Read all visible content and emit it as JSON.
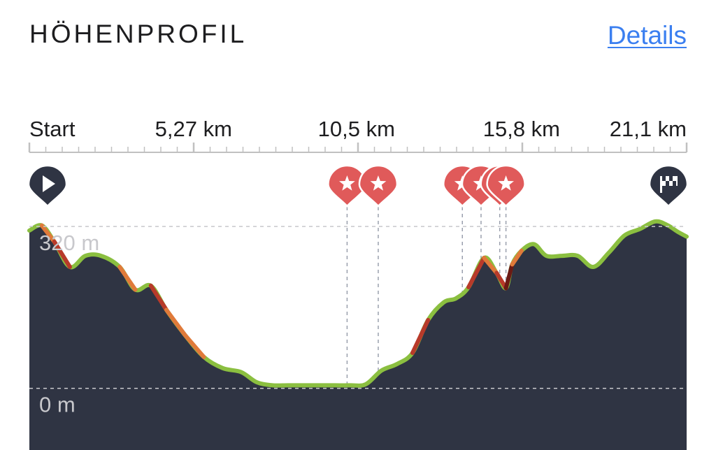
{
  "header": {
    "title": "HÖHENPROFIL",
    "details_link": "Details"
  },
  "colors": {
    "fill": "#2f3443",
    "line": "#8bbf40",
    "steep_orange": "#e07a3a",
    "steep_red": "#b83a2a",
    "steep_darkred": "#6b1a14",
    "marker": "#e05a5a",
    "axis": "#c0c0c0"
  },
  "markers": {
    "start_icon": "play-icon",
    "finish_icon": "checkered-flag-icon",
    "poi_icon": "star-pin-icon",
    "poi_km": [
      10.2,
      11.2,
      13.9,
      14.5,
      15.1,
      15.3
    ]
  },
  "chart_data": {
    "type": "area",
    "title": "HÖHENPROFIL",
    "xlabel": "",
    "ylabel": "",
    "x_tick_labels": [
      "Start",
      "5,27 km",
      "10,5 km",
      "15,8 km",
      "21,1 km"
    ],
    "x_tick_values": [
      0,
      5.27,
      10.5,
      15.8,
      21.1
    ],
    "y_tick_labels": [
      "320 m",
      "0 m"
    ],
    "y_tick_values": [
      320,
      0
    ],
    "xlim": [
      0,
      21.1
    ],
    "ylim": [
      -122,
      345
    ],
    "grid": "dashed horizontal at tick values",
    "series": [
      {
        "x": [
          0,
          0.4,
          0.8,
          1.3,
          1.8,
          2.3,
          2.9,
          3.4,
          3.9,
          4.4,
          5.0,
          5.6,
          6.2,
          6.8,
          7.3,
          7.8,
          8.3,
          8.8,
          9.3,
          9.8,
          10.3,
          10.8,
          11.3,
          11.8,
          12.3,
          12.8,
          13.3,
          13.7,
          14.1,
          14.6,
          15.0,
          15.3,
          15.5,
          15.8,
          16.2,
          16.6,
          17.1,
          17.6,
          18.1,
          18.6,
          19.1,
          19.6,
          20.1,
          20.5,
          20.8,
          21.1
        ],
        "values": [
          312,
          322,
          290,
          240,
          262,
          262,
          240,
          195,
          203,
          155,
          105,
          62,
          40,
          32,
          12,
          6,
          6,
          6,
          6,
          6,
          6,
          8,
          35,
          48,
          70,
          135,
          170,
          178,
          200,
          258,
          228,
          198,
          245,
          272,
          285,
          262,
          262,
          262,
          240,
          268,
          302,
          315,
          330,
          322,
          310,
          300
        ]
      }
    ]
  }
}
